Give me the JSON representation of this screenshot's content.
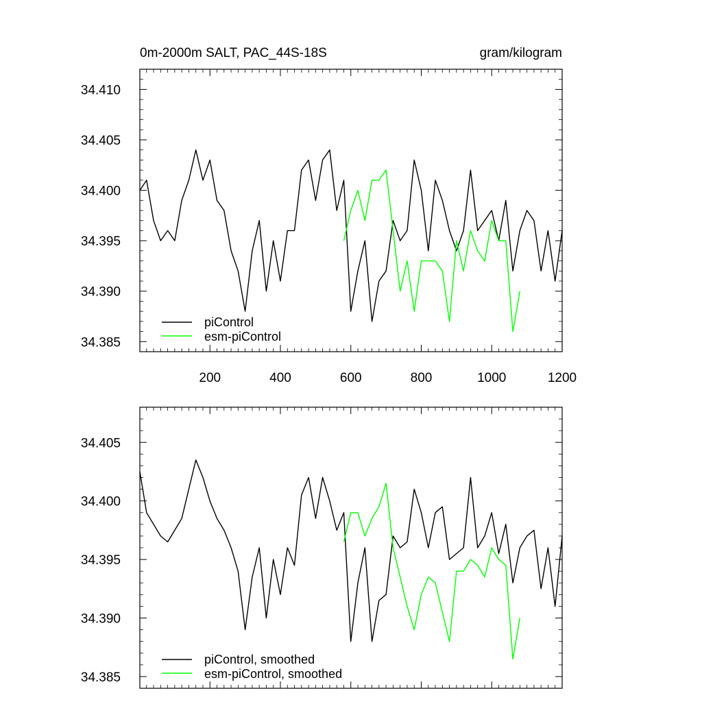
{
  "chart_data": [
    {
      "type": "line",
      "title_left": "0m-2000m SALT, PAC_44S-18S",
      "title_right": "gram/kilogram",
      "xlim": [
        1,
        1200
      ],
      "ylim": [
        34.384,
        34.412
      ],
      "x_ticks": [
        200,
        400,
        600,
        800,
        1000,
        1200
      ],
      "x_tick_labels": [
        "200",
        "400",
        "600",
        "800",
        "1000",
        "1200"
      ],
      "y_ticks": [
        34.385,
        34.39,
        34.395,
        34.4,
        34.405,
        34.41
      ],
      "y_tick_labels": [
        "34.385",
        "34.390",
        "34.395",
        "34.400",
        "34.405",
        "34.410"
      ],
      "legend_position": "bottom-left",
      "series": [
        {
          "name": "piControl",
          "color": "#000000",
          "x": [
            1,
            20,
            40,
            60,
            80,
            100,
            120,
            140,
            160,
            180,
            200,
            220,
            240,
            260,
            280,
            300,
            320,
            340,
            360,
            380,
            400,
            420,
            440,
            460,
            480,
            500,
            520,
            540,
            560,
            580,
            600,
            620,
            640,
            660,
            680,
            700,
            720,
            740,
            760,
            780,
            800,
            820,
            840,
            860,
            880,
            900,
            920,
            940,
            960,
            980,
            1000,
            1020,
            1040,
            1060,
            1080,
            1100,
            1120,
            1140,
            1160,
            1180,
            1200
          ],
          "values": [
            34.4,
            34.401,
            34.397,
            34.395,
            34.396,
            34.395,
            34.399,
            34.401,
            34.404,
            34.401,
            34.403,
            34.399,
            34.398,
            34.394,
            34.392,
            34.388,
            34.394,
            34.397,
            34.39,
            34.395,
            34.391,
            34.396,
            34.396,
            34.402,
            34.403,
            34.399,
            34.403,
            34.404,
            34.398,
            34.401,
            34.388,
            34.392,
            34.395,
            34.387,
            34.391,
            34.392,
            34.397,
            34.395,
            34.396,
            34.403,
            34.4,
            34.394,
            34.401,
            34.399,
            34.396,
            34.394,
            34.396,
            34.402,
            34.396,
            34.397,
            34.398,
            34.395,
            34.399,
            34.392,
            34.396,
            34.398,
            34.397,
            34.392,
            34.396,
            34.391,
            34.396
          ]
        },
        {
          "name": "esm-piControl",
          "color": "#00ff00",
          "x": [
            580,
            600,
            620,
            640,
            660,
            680,
            700,
            720,
            740,
            760,
            780,
            800,
            820,
            840,
            860,
            880,
            900,
            920,
            940,
            960,
            980,
            1000,
            1020,
            1040,
            1060,
            1080
          ],
          "values": [
            34.395,
            34.398,
            34.4,
            34.397,
            34.401,
            34.401,
            34.402,
            34.396,
            34.39,
            34.393,
            34.388,
            34.393,
            34.393,
            34.393,
            34.392,
            34.387,
            34.395,
            34.392,
            34.396,
            34.394,
            34.393,
            34.397,
            34.395,
            34.395,
            34.386,
            34.39
          ]
        }
      ]
    },
    {
      "type": "line",
      "xlim": [
        1,
        1200
      ],
      "ylim": [
        34.384,
        34.408
      ],
      "x_ticks": [
        200,
        400,
        600,
        800,
        1000,
        1200
      ],
      "y_ticks": [
        34.385,
        34.39,
        34.395,
        34.4,
        34.405
      ],
      "y_tick_labels": [
        "34.385",
        "34.390",
        "34.395",
        "34.400",
        "34.405"
      ],
      "legend_position": "bottom-left",
      "series": [
        {
          "name": "piControl, smoothed",
          "color": "#000000",
          "x": [
            1,
            20,
            40,
            60,
            80,
            100,
            120,
            140,
            160,
            180,
            200,
            220,
            240,
            260,
            280,
            300,
            320,
            340,
            360,
            380,
            400,
            420,
            440,
            460,
            480,
            500,
            520,
            540,
            560,
            580,
            600,
            620,
            640,
            660,
            680,
            700,
            720,
            740,
            760,
            780,
            800,
            820,
            840,
            860,
            880,
            900,
            920,
            940,
            960,
            980,
            1000,
            1020,
            1040,
            1060,
            1080,
            1100,
            1120,
            1140,
            1160,
            1180,
            1200
          ],
          "values": [
            34.4025,
            34.399,
            34.398,
            34.397,
            34.3965,
            34.3975,
            34.3985,
            34.401,
            34.4035,
            34.402,
            34.4,
            34.3985,
            34.3975,
            34.396,
            34.394,
            34.389,
            34.3935,
            34.396,
            34.39,
            34.395,
            34.392,
            34.396,
            34.3945,
            34.4005,
            34.402,
            34.3985,
            34.402,
            34.4,
            34.3975,
            34.399,
            34.388,
            34.393,
            34.396,
            34.388,
            34.3915,
            34.392,
            34.397,
            34.396,
            34.3965,
            34.401,
            34.399,
            34.396,
            34.399,
            34.3995,
            34.395,
            34.3955,
            34.396,
            34.402,
            34.396,
            34.397,
            34.399,
            34.3955,
            34.398,
            34.393,
            34.396,
            34.397,
            34.3975,
            34.3925,
            34.396,
            34.391,
            34.397
          ]
        },
        {
          "name": "esm-piControl, smoothed",
          "color": "#00ff00",
          "x": [
            580,
            600,
            620,
            640,
            660,
            680,
            700,
            720,
            740,
            760,
            780,
            800,
            820,
            840,
            860,
            880,
            900,
            920,
            940,
            960,
            980,
            1000,
            1020,
            1040,
            1060,
            1080
          ],
          "values": [
            34.3965,
            34.399,
            34.399,
            34.397,
            34.3985,
            34.3995,
            34.4015,
            34.396,
            34.3935,
            34.391,
            34.389,
            34.392,
            34.3935,
            34.393,
            34.3905,
            34.388,
            34.394,
            34.394,
            34.395,
            34.3945,
            34.3935,
            34.396,
            34.395,
            34.3945,
            34.3865,
            34.39
          ]
        }
      ]
    }
  ]
}
